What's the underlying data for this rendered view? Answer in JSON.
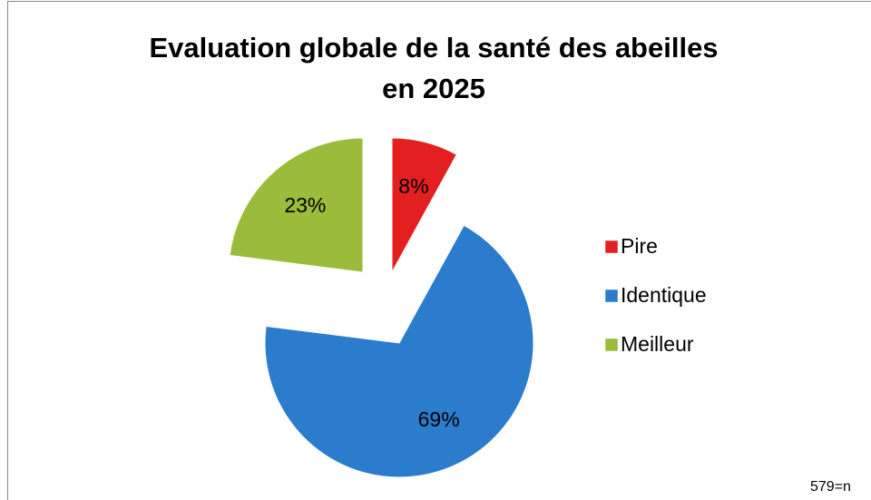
{
  "chart_data": {
    "type": "pie",
    "title": "Evaluation globale de la santé des abeilles",
    "title_line_2": "en 2025",
    "note": "579=n",
    "categories": [
      "Pire",
      "Identique",
      "Meilleur"
    ],
    "values": [
      8,
      69,
      23
    ],
    "value_labels": [
      "8%",
      "69%",
      "23%"
    ],
    "colors": [
      "#e3201f",
      "#2b7ccc",
      "#9bbb3a"
    ],
    "legend": "right"
  }
}
